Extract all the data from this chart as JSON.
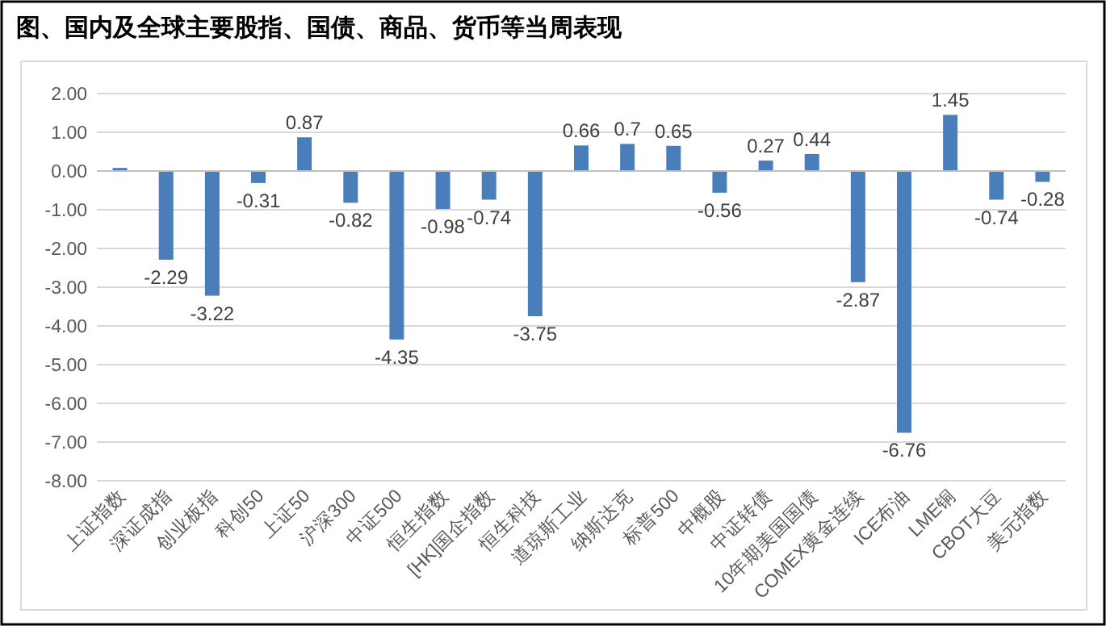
{
  "chart_data": {
    "type": "bar",
    "title": "图、国内及全球主要股指、国债、商品、货币等当周表现",
    "categories": [
      "上证指数",
      "深证成指",
      "创业板指",
      "科创50",
      "上证50",
      "沪深300",
      "中证500",
      "恒生指数",
      "[HK]国企指数",
      "恒生科技",
      "道琼斯工业",
      "纳斯达克",
      "标普500",
      "中概股",
      "中证转债",
      "10年期美国国债",
      "COMEX黄金连续",
      "ICE布油",
      "LME铜",
      "CBOT大豆",
      "美元指数"
    ],
    "values": [
      0.08,
      -2.29,
      -3.22,
      -0.31,
      0.87,
      -0.82,
      -4.35,
      -0.98,
      -0.74,
      -3.75,
      0.66,
      0.7,
      0.65,
      -0.56,
      0.27,
      0.44,
      -2.87,
      -6.76,
      1.45,
      -0.74,
      -0.28
    ],
    "value_labels": [
      null,
      "-2.29",
      "-3.22",
      "-0.31",
      "0.87",
      "-0.82",
      "-4.35",
      "-0.98",
      "-0.74",
      "-3.75",
      "0.66",
      "0.7",
      "0.65",
      "-0.56",
      "0.27",
      "0.44",
      "-2.87",
      "-6.76",
      "1.45",
      "-0.74",
      "-0.28"
    ],
    "color": "#4a7ebb",
    "ylim": [
      -8,
      2
    ],
    "yticks": [
      {
        "value": 2,
        "label": "2.00"
      },
      {
        "value": 1,
        "label": "1.00"
      },
      {
        "value": 0,
        "label": "0.00"
      },
      {
        "value": -1,
        "label": "-1.00"
      },
      {
        "value": -2,
        "label": "-2.00"
      },
      {
        "value": -3,
        "label": "-3.00"
      },
      {
        "value": -4,
        "label": "-4.00"
      },
      {
        "value": -5,
        "label": "-5.00"
      },
      {
        "value": -6,
        "label": "-6.00"
      },
      {
        "value": -7,
        "label": "-7.00"
      },
      {
        "value": -8,
        "label": "-8.00"
      }
    ],
    "grid": "y"
  }
}
